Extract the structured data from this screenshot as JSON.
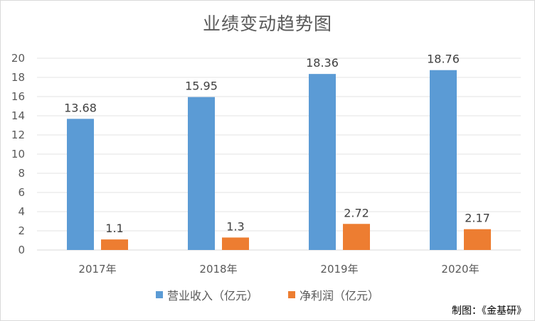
{
  "chart_data": {
    "type": "bar",
    "title": "业绩变动趋势图",
    "categories": [
      "2017年",
      "2018年",
      "2019年",
      "2020年"
    ],
    "series": [
      {
        "name": "营业收入（亿元）",
        "values": [
          13.68,
          15.95,
          18.36,
          18.76
        ],
        "color": "#5b9bd5"
      },
      {
        "name": "净利润（亿元）",
        "values": [
          1.1,
          1.3,
          2.72,
          2.17
        ],
        "color": "#ed7d31"
      }
    ],
    "value_labels": [
      [
        "13.68",
        "15.95",
        "18.36",
        "18.76"
      ],
      [
        "1.1",
        "1.3",
        "2.72",
        "2.17"
      ]
    ],
    "ylim": [
      0,
      20
    ],
    "yticks": [
      "0",
      "2",
      "4",
      "6",
      "8",
      "10",
      "12",
      "14",
      "16",
      "18",
      "20"
    ],
    "grid": true,
    "legend_position": "bottom",
    "xlabel": "",
    "ylabel": ""
  },
  "credit": "制图：《金基研》"
}
